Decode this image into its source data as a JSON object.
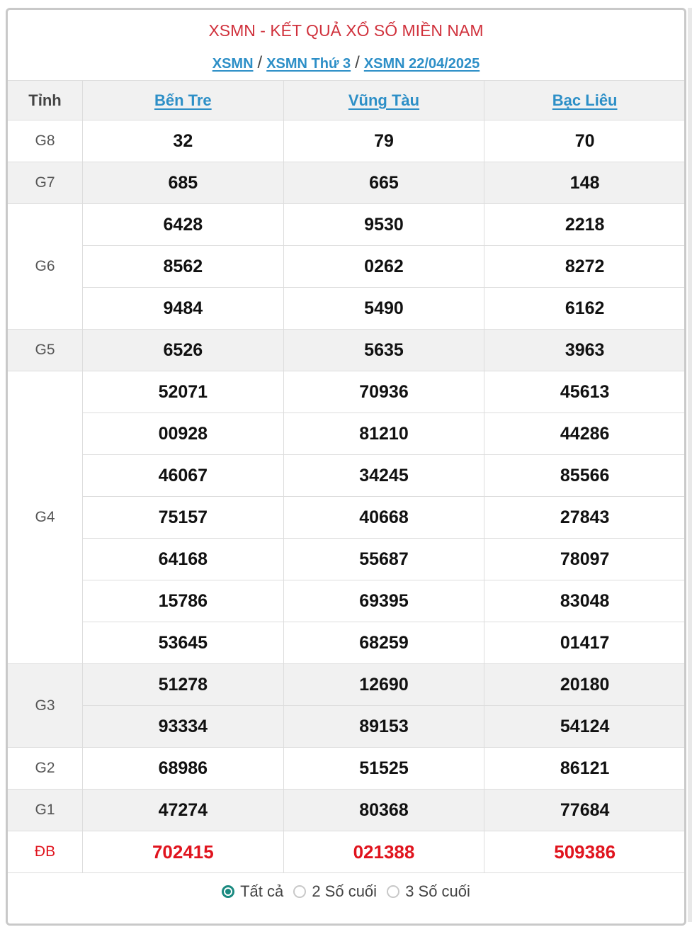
{
  "header": {
    "title": "XSMN - KẾT QUẢ XỔ SỐ MIỀN NAM",
    "breadcrumb": [
      "XSMN",
      "XSMN Thứ 3",
      "XSMN 22/04/2025"
    ],
    "separator": "/"
  },
  "table": {
    "corner": "Tỉnh",
    "provinces": [
      "Bến Tre",
      "Vũng Tàu",
      "Bạc Liêu"
    ],
    "prizes": [
      {
        "label": "G8",
        "rows": [
          [
            "32",
            "79",
            "70"
          ]
        ]
      },
      {
        "label": "G7",
        "rows": [
          [
            "685",
            "665",
            "148"
          ]
        ]
      },
      {
        "label": "G6",
        "rows": [
          [
            "6428",
            "9530",
            "2218"
          ],
          [
            "8562",
            "0262",
            "8272"
          ],
          [
            "9484",
            "5490",
            "6162"
          ]
        ]
      },
      {
        "label": "G5",
        "rows": [
          [
            "6526",
            "5635",
            "3963"
          ]
        ]
      },
      {
        "label": "G4",
        "rows": [
          [
            "52071",
            "70936",
            "45613"
          ],
          [
            "00928",
            "81210",
            "44286"
          ],
          [
            "46067",
            "34245",
            "85566"
          ],
          [
            "75157",
            "40668",
            "27843"
          ],
          [
            "64168",
            "55687",
            "78097"
          ],
          [
            "15786",
            "69395",
            "83048"
          ],
          [
            "53645",
            "68259",
            "01417"
          ]
        ]
      },
      {
        "label": "G3",
        "rows": [
          [
            "51278",
            "12690",
            "20180"
          ],
          [
            "93334",
            "89153",
            "54124"
          ]
        ]
      },
      {
        "label": "G2",
        "rows": [
          [
            "68986",
            "51525",
            "86121"
          ]
        ]
      },
      {
        "label": "G1",
        "rows": [
          [
            "47274",
            "80368",
            "77684"
          ]
        ]
      },
      {
        "label": "ĐB",
        "rows": [
          [
            "702415",
            "021388",
            "509386"
          ]
        ],
        "special": true
      }
    ]
  },
  "filter": {
    "options": [
      "Tất cả",
      "2 Số cuối",
      "3 Số cuối"
    ],
    "selected": "Tất cả"
  },
  "colors": {
    "title": "#d0313c",
    "link": "#2d8fc7",
    "special": "#e0141e",
    "radio_active": "#1a8a80"
  }
}
